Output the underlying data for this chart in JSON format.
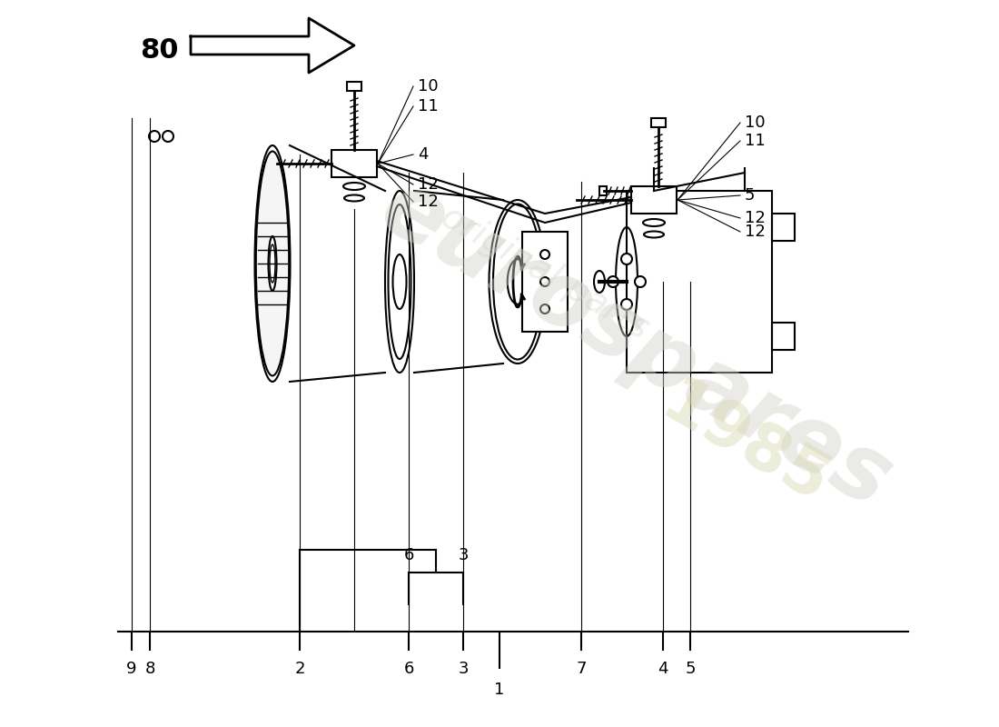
{
  "title": "",
  "background_color": "#ffffff",
  "watermark_text": "eurospares",
  "watermark_year": "1985",
  "arrow_label": "80",
  "part_labels_bottom": [
    "9",
    "8",
    "2",
    "6",
    "3",
    "7",
    "4",
    "5",
    "1"
  ],
  "part_labels_top_left": [
    "10",
    "11",
    "4",
    "12",
    "12"
  ],
  "part_labels_top_right": [
    "10",
    "11",
    "5",
    "12",
    "12"
  ],
  "line_color": "#000000",
  "label_fontsize": 13,
  "arrow_label_fontsize": 22
}
